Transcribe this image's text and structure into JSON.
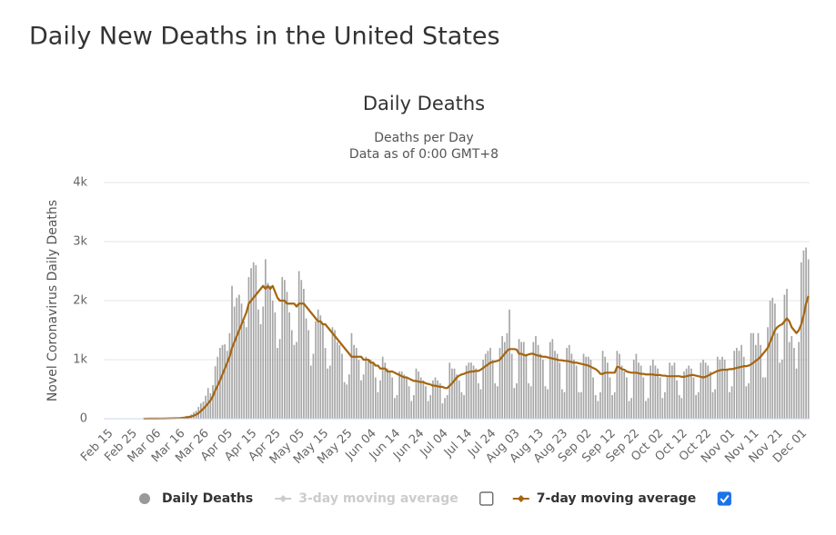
{
  "heading": "Daily New Deaths in the United States",
  "chart_data": {
    "type": "bar",
    "title": "Daily Deaths",
    "subtitle": [
      "Deaths per Day",
      "Data as of 0:00 GMT+8"
    ],
    "y_label": "Novel Coronavirus Daily Deaths",
    "ylim": [
      0,
      4000
    ],
    "yticks": [
      0,
      {
        "value": 1000,
        "label": "1k"
      },
      {
        "value": 2000,
        "label": "2k"
      },
      {
        "value": 3000,
        "label": "3k"
      },
      {
        "value": 4000,
        "label": "4k"
      }
    ],
    "grid": true,
    "categories": [
      "Feb 15",
      null,
      null,
      null,
      null,
      null,
      null,
      null,
      null,
      null,
      "Feb 25",
      null,
      null,
      null,
      null,
      null,
      null,
      null,
      null,
      null,
      "Mar 06",
      null,
      null,
      null,
      null,
      null,
      null,
      null,
      null,
      null,
      "Mar 16",
      null,
      null,
      null,
      null,
      null,
      null,
      null,
      null,
      null,
      "Mar 26",
      null,
      null,
      null,
      null,
      null,
      null,
      null,
      null,
      null,
      "Apr 05",
      null,
      null,
      null,
      null,
      null,
      null,
      null,
      null,
      null,
      "Apr 15",
      null,
      null,
      null,
      null,
      null,
      null,
      null,
      null,
      null,
      "Apr 25",
      null,
      null,
      null,
      null,
      null,
      null,
      null,
      null,
      null,
      "May 05",
      null,
      null,
      null,
      null,
      null,
      null,
      null,
      null,
      null,
      "May 15",
      null,
      null,
      null,
      null,
      null,
      null,
      null,
      null,
      null,
      "May 25",
      null,
      null,
      null,
      null,
      null,
      null,
      null,
      null,
      null,
      "Jun 04",
      null,
      null,
      null,
      null,
      null,
      null,
      null,
      null,
      null,
      "Jun 14",
      null,
      null,
      null,
      null,
      null,
      null,
      null,
      null,
      null,
      "Jun 24",
      null,
      null,
      null,
      null,
      null,
      null,
      null,
      null,
      null,
      "Jul 04",
      null,
      null,
      null,
      null,
      null,
      null,
      null,
      null,
      null,
      "Jul 14",
      null,
      null,
      null,
      null,
      null,
      null,
      null,
      null,
      null,
      "Jul 24",
      null,
      null,
      null,
      null,
      null,
      null,
      null,
      null,
      null,
      "Aug 03",
      null,
      null,
      null,
      null,
      null,
      null,
      null,
      null,
      null,
      "Aug 13",
      null,
      null,
      null,
      null,
      null,
      null,
      null,
      null,
      null,
      "Aug 23",
      null,
      null,
      null,
      null,
      null,
      null,
      null,
      null,
      null,
      "Sep 02",
      null,
      null,
      null,
      null,
      null,
      null,
      null,
      null,
      null,
      "Sep 12",
      null,
      null,
      null,
      null,
      null,
      null,
      null,
      null,
      null,
      "Sep 22",
      null,
      null,
      null,
      null,
      null,
      null,
      null,
      null,
      null,
      "Oct 02",
      null,
      null,
      null,
      null,
      null,
      null,
      null,
      null,
      null,
      "Oct 12",
      null,
      null,
      null,
      null,
      null,
      null,
      null,
      null,
      null,
      "Oct 22",
      null,
      null,
      null,
      null,
      null,
      null,
      null,
      null,
      null,
      "Nov 01",
      null,
      null,
      null,
      null,
      null,
      null,
      null,
      null,
      null,
      "Nov 11",
      null,
      null,
      null,
      null,
      null,
      null,
      null,
      null,
      null,
      "Nov 21",
      null,
      null,
      null,
      null,
      null,
      null,
      null,
      null,
      null,
      "Dec 01",
      null,
      null,
      null
    ],
    "series": [
      {
        "name": "Daily Deaths",
        "type": "bar",
        "color": "#a6a6a6",
        "legend_color": "#999999",
        "values": [
          0,
          0,
          0,
          0,
          0,
          0,
          0,
          0,
          0,
          0,
          0,
          0,
          0,
          0,
          0,
          1,
          1,
          4,
          3,
          1,
          2,
          3,
          4,
          4,
          7,
          8,
          9,
          10,
          11,
          14,
          20,
          25,
          33,
          48,
          52,
          73,
          110,
          135,
          200,
          260,
          290,
          390,
          520,
          430,
          570,
          890,
          1050,
          1200,
          1250,
          1260,
          1150,
          1450,
          2250,
          1900,
          2050,
          2100,
          1950,
          1650,
          1550,
          2400,
          2550,
          2650,
          2600,
          1850,
          1600,
          1900,
          2700,
          2300,
          2250,
          2000,
          1800,
          1200,
          1350,
          2400,
          2350,
          2150,
          1800,
          1500,
          1250,
          1300,
          2500,
          2350,
          2200,
          1700,
          1500,
          900,
          1100,
          1650,
          1850,
          1750,
          1600,
          1200,
          850,
          900,
          1550,
          1500,
          1300,
          1250,
          1100,
          620,
          580,
          750,
          1450,
          1250,
          1200,
          1000,
          650,
          750,
          1050,
          1000,
          1000,
          950,
          700,
          450,
          650,
          1050,
          950,
          850,
          800,
          700,
          350,
          400,
          800,
          800,
          750,
          700,
          550,
          300,
          400,
          850,
          800,
          700,
          650,
          550,
          300,
          400,
          650,
          700,
          650,
          600,
          260,
          350,
          400,
          950,
          850,
          850,
          750,
          650,
          450,
          400,
          900,
          950,
          950,
          900,
          850,
          600,
          500,
          1000,
          1100,
          1150,
          1200,
          1000,
          600,
          550,
          1200,
          1400,
          1300,
          1450,
          1850,
          1100,
          520,
          600,
          1350,
          1300,
          1300,
          1100,
          600,
          550,
          1300,
          1400,
          1250,
          1100,
          1000,
          550,
          500,
          1300,
          1350,
          1150,
          1100,
          950,
          500,
          450,
          1200,
          1250,
          1100,
          1000,
          900,
          450,
          450,
          1100,
          1050,
          1050,
          1000,
          700,
          400,
          300,
          450,
          1150,
          1050,
          950,
          700,
          400,
          450,
          1150,
          1100,
          900,
          800,
          700,
          300,
          350,
          1000,
          1100,
          950,
          900,
          700,
          300,
          350,
          900,
          1000,
          900,
          850,
          700,
          350,
          450,
          700,
          950,
          900,
          950,
          650,
          400,
          350,
          800,
          850,
          900,
          850,
          700,
          400,
          450,
          950,
          1000,
          950,
          900,
          800,
          450,
          500,
          1050,
          1000,
          1050,
          1000,
          850,
          450,
          550,
          1150,
          1200,
          1150,
          1250,
          1050,
          550,
          600,
          1450,
          1450,
          1250,
          1450,
          1250,
          700,
          700,
          1550,
          2000,
          2050,
          1950,
          1450,
          950,
          1000,
          2100,
          2200,
          1300,
          1400,
          1200,
          850,
          1300,
          2650,
          2850,
          2900,
          2700
        ]
      },
      {
        "name": "3-day moving average",
        "type": "line",
        "color": "#cccccc",
        "visible": false,
        "checked": false
      },
      {
        "name": "7-day moving average",
        "type": "line",
        "color": "#a5650f",
        "visible": true,
        "checked": true,
        "values": [
          null,
          null,
          null,
          null,
          null,
          null,
          null,
          null,
          null,
          null,
          null,
          null,
          null,
          null,
          null,
          1,
          1,
          2,
          2,
          2,
          2,
          2,
          3,
          3,
          4,
          5,
          6,
          7,
          8,
          9,
          11,
          14,
          18,
          23,
          29,
          38,
          52,
          70,
          95,
          130,
          170,
          210,
          260,
          310,
          380,
          480,
          560,
          650,
          750,
          850,
          950,
          1050,
          1200,
          1300,
          1400,
          1500,
          1600,
          1700,
          1800,
          1950,
          2000,
          2050,
          2100,
          2150,
          2200,
          2250,
          2200,
          2250,
          2200,
          2250,
          2150,
          2050,
          2000,
          2000,
          2000,
          1950,
          1950,
          1950,
          1950,
          1900,
          1950,
          1950,
          1950,
          1900,
          1850,
          1800,
          1750,
          1700,
          1650,
          1650,
          1600,
          1600,
          1550,
          1500,
          1450,
          1400,
          1350,
          1300,
          1250,
          1200,
          1150,
          1100,
          1050,
          1050,
          1050,
          1050,
          1050,
          1000,
          1000,
          1000,
          950,
          950,
          900,
          900,
          850,
          850,
          850,
          800,
          800,
          800,
          780,
          760,
          740,
          720,
          700,
          700,
          680,
          660,
          640,
          640,
          630,
          620,
          620,
          600,
          590,
          580,
          560,
          560,
          550,
          540,
          540,
          520,
          520,
          560,
          600,
          650,
          700,
          730,
          750,
          760,
          780,
          790,
          800,
          800,
          810,
          810,
          830,
          860,
          890,
          920,
          950,
          960,
          970,
          980,
          1000,
          1050,
          1100,
          1150,
          1180,
          1180,
          1180,
          1170,
          1100,
          1100,
          1080,
          1070,
          1090,
          1100,
          1100,
          1080,
          1070,
          1060,
          1050,
          1050,
          1040,
          1030,
          1020,
          1010,
          1000,
          990,
          990,
          980,
          980,
          970,
          960,
          950,
          950,
          940,
          930,
          920,
          910,
          900,
          880,
          860,
          840,
          810,
          760,
          760,
          780,
          780,
          780,
          780,
          780,
          880,
          870,
          840,
          830,
          800,
          790,
          780,
          780,
          780,
          770,
          760,
          760,
          750,
          750,
          750,
          750,
          740,
          740,
          740,
          730,
          730,
          720,
          720,
          720,
          720,
          720,
          720,
          710,
          710,
          720,
          730,
          740,
          740,
          730,
          720,
          710,
          700,
          710,
          730,
          750,
          770,
          790,
          810,
          820,
          830,
          830,
          830,
          840,
          840,
          850,
          860,
          870,
          880,
          890,
          890,
          900,
          920,
          950,
          980,
          1010,
          1050,
          1100,
          1150,
          1200,
          1300,
          1400,
          1500,
          1550,
          1580,
          1600,
          1650,
          1700,
          1650,
          1550,
          1500,
          1450,
          1500,
          1600,
          1750,
          1950,
          2080
        ]
      }
    ]
  }
}
